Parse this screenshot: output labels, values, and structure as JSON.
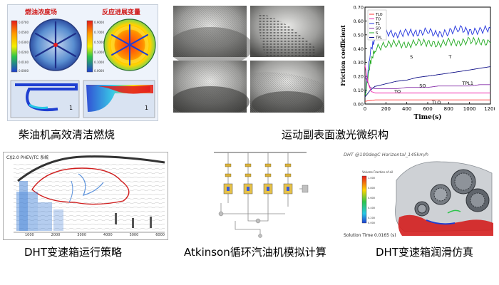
{
  "captions": {
    "diesel": "柴油机高效清洁燃烧",
    "laser": "运动副表面激光微织构",
    "dht_strategy": "DHT变速箱运行策略",
    "atkinson": "Atkinson循环汽油机模拟计算",
    "dht_lube": "DHT变速箱润滑仿真"
  },
  "diesel_panel": {
    "label_left": "燃油浓度场",
    "label_right": "反应进展变量",
    "inset_marker": "1"
  },
  "friction_chart": {
    "chart_data": {
      "type": "line",
      "xlabel": "Time(s)",
      "ylabel": "Friction coefficient",
      "xlim": [
        0,
        1200
      ],
      "ylim": [
        0.0,
        0.7
      ],
      "xticks": [
        "0",
        "200",
        "400",
        "600",
        "800",
        "1000",
        "1200"
      ],
      "yticks": [
        "0.00",
        "0.10",
        "0.20",
        "0.30",
        "0.40",
        "0.50",
        "0.60",
        "0.70"
      ],
      "legend": [
        "TLO",
        "TO",
        "T1",
        "SO",
        "S",
        "TPL"
      ],
      "series": [
        {
          "name": "S",
          "color": "#2233dd",
          "x": [
            0,
            50,
            100,
            200,
            300,
            400,
            500,
            600,
            700,
            800,
            900,
            1000,
            1100,
            1200
          ],
          "y": [
            0.05,
            0.38,
            0.48,
            0.52,
            0.5,
            0.52,
            0.51,
            0.53,
            0.5,
            0.52,
            0.55,
            0.52,
            0.53,
            0.55
          ]
        },
        {
          "name": "T",
          "color": "#22aa22",
          "x": [
            0,
            50,
            100,
            200,
            300,
            400,
            500,
            600,
            700,
            800,
            900,
            1000,
            1100,
            1200
          ],
          "y": [
            0.05,
            0.3,
            0.4,
            0.43,
            0.44,
            0.42,
            0.45,
            0.44,
            0.43,
            0.45,
            0.44,
            0.46,
            0.45,
            0.44
          ]
        },
        {
          "name": "TPL",
          "color": "#111188",
          "x": [
            0,
            50,
            100,
            200,
            300,
            400,
            500,
            600,
            700,
            800,
            900,
            1000,
            1100,
            1200
          ],
          "y": [
            0.05,
            0.1,
            0.13,
            0.15,
            0.17,
            0.18,
            0.2,
            0.21,
            0.22,
            0.23,
            0.24,
            0.25,
            0.26,
            0.27
          ]
        },
        {
          "name": "SO",
          "color": "#8833aa",
          "x": [
            0,
            50,
            100,
            200,
            300,
            400,
            500,
            600,
            700,
            800,
            900,
            1000,
            1100,
            1200
          ],
          "y": [
            0.2,
            0.12,
            0.11,
            0.11,
            0.11,
            0.12,
            0.12,
            0.12,
            0.13,
            0.13,
            0.13,
            0.13,
            0.14,
            0.14
          ]
        },
        {
          "name": "TO",
          "color": "#ee22aa",
          "x": [
            0,
            30,
            60,
            100,
            200,
            400,
            600,
            800,
            1000,
            1200
          ],
          "y": [
            0.28,
            0.15,
            0.09,
            0.08,
            0.08,
            0.08,
            0.08,
            0.08,
            0.08,
            0.08
          ]
        },
        {
          "name": "TLO",
          "color": "#ff3333",
          "x": [
            0,
            100,
            200,
            400,
            600,
            800,
            1000,
            1200
          ],
          "y": [
            0.02,
            0.03,
            0.03,
            0.03,
            0.03,
            0.03,
            0.03,
            0.03
          ]
        }
      ],
      "annotations": [
        "S",
        "T",
        "TPL1",
        "TO",
        "SO",
        "TLO"
      ]
    }
  },
  "dht_map": {
    "title": "CX̠2.0 PHEV/TC 系统",
    "xticks": [
      "1000",
      "2000",
      "3000",
      "4000",
      "5000",
      "6000"
    ]
  },
  "lube_panel": {
    "title": "DHT @100degC Horizontal_145km/h",
    "legend_title": "Volume Fraction of oil",
    "solution_time": "Solution Time 0.0165 (s)"
  },
  "colors": {
    "jet_red": "#e41a1c",
    "jet_blue": "#1f3fd1",
    "oil_red": "#d41e1e"
  }
}
